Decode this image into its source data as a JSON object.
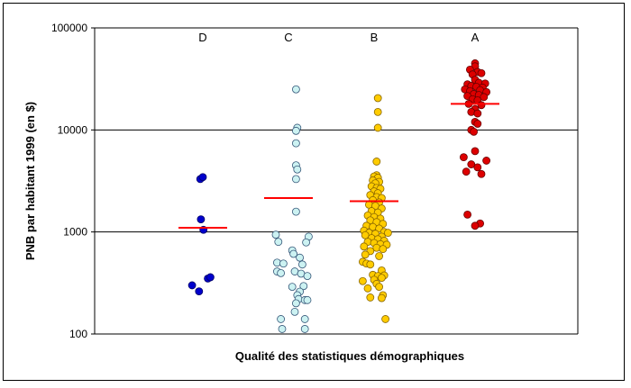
{
  "chart_data": {
    "type": "scatter",
    "title": "",
    "xlabel": "Qualité des statistiques démographiques",
    "ylabel": "PNB par habitant 1999 (en $)",
    "y_scale": "log",
    "ylim": [
      100,
      100000
    ],
    "y_ticks": [
      {
        "value": 100,
        "label": "100"
      },
      {
        "value": 1000,
        "label": "1000"
      },
      {
        "value": 10000,
        "label": "10000"
      },
      {
        "value": 100000,
        "label": "100000"
      }
    ],
    "grid": true,
    "legend": "none",
    "mean_color": "#ff0000",
    "series": [
      {
        "name": "D",
        "color": "#0000cc",
        "stroke": "#000066",
        "mean": 1100,
        "points": [
          {
            "x": -0.2,
            "y": 3300
          },
          {
            "x": 0.0,
            "y": 3450
          },
          {
            "x": -0.15,
            "y": 1330
          },
          {
            "x": 0.05,
            "y": 1050
          },
          {
            "x": -0.85,
            "y": 300
          },
          {
            "x": -0.3,
            "y": 262
          },
          {
            "x": 0.4,
            "y": 350
          },
          {
            "x": 0.6,
            "y": 360
          }
        ]
      },
      {
        "name": "C",
        "color": "#ccf2f2",
        "stroke": "#335577",
        "mean": 2150,
        "points": [
          {
            "x": 0.6,
            "y": 25000
          },
          {
            "x": 0.7,
            "y": 10500
          },
          {
            "x": 0.6,
            "y": 9800
          },
          {
            "x": 0.6,
            "y": 7400
          },
          {
            "x": 0.6,
            "y": 4500
          },
          {
            "x": 0.7,
            "y": 4100
          },
          {
            "x": 0.6,
            "y": 3300
          },
          {
            "x": 0.6,
            "y": 1580
          },
          {
            "x": -1.0,
            "y": 940
          },
          {
            "x": 1.6,
            "y": 900
          },
          {
            "x": -0.8,
            "y": 800
          },
          {
            "x": 1.4,
            "y": 790
          },
          {
            "x": 0.3,
            "y": 660
          },
          {
            "x": 0.4,
            "y": 610
          },
          {
            "x": 0.9,
            "y": 560
          },
          {
            "x": -0.9,
            "y": 500
          },
          {
            "x": -0.4,
            "y": 490
          },
          {
            "x": 1.1,
            "y": 480
          },
          {
            "x": -0.9,
            "y": 410
          },
          {
            "x": 0.5,
            "y": 410
          },
          {
            "x": 1.0,
            "y": 390
          },
          {
            "x": -0.6,
            "y": 395
          },
          {
            "x": 1.5,
            "y": 370
          },
          {
            "x": 0.3,
            "y": 290
          },
          {
            "x": 1.2,
            "y": 295
          },
          {
            "x": 0.9,
            "y": 260
          },
          {
            "x": 0.7,
            "y": 240
          },
          {
            "x": 0.8,
            "y": 220
          },
          {
            "x": 1.3,
            "y": 215
          },
          {
            "x": 1.5,
            "y": 215
          },
          {
            "x": 0.6,
            "y": 200
          },
          {
            "x": 0.5,
            "y": 165
          },
          {
            "x": -0.6,
            "y": 140
          },
          {
            "x": 1.3,
            "y": 140
          },
          {
            "x": -0.5,
            "y": 112
          },
          {
            "x": 1.3,
            "y": 112
          }
        ]
      },
      {
        "name": "B",
        "color": "#ffcc00",
        "stroke": "#886600",
        "mean": 2000,
        "points": [
          {
            "x": 0.3,
            "y": 20500
          },
          {
            "x": 0.3,
            "y": 15000
          },
          {
            "x": 0.3,
            "y": 10500
          },
          {
            "x": 0.2,
            "y": 4900
          },
          {
            "x": 0.2,
            "y": 3600
          },
          {
            "x": 0.0,
            "y": 3500
          },
          {
            "x": 0.3,
            "y": 3400
          },
          {
            "x": -0.1,
            "y": 3200
          },
          {
            "x": 0.4,
            "y": 3100
          },
          {
            "x": 0.1,
            "y": 3000
          },
          {
            "x": -0.2,
            "y": 2800
          },
          {
            "x": 0.2,
            "y": 2700
          },
          {
            "x": 0.5,
            "y": 2650
          },
          {
            "x": 0.0,
            "y": 2500
          },
          {
            "x": 0.3,
            "y": 2400
          },
          {
            "x": -0.3,
            "y": 2300
          },
          {
            "x": 0.2,
            "y": 2200
          },
          {
            "x": 0.6,
            "y": 2150
          },
          {
            "x": -0.1,
            "y": 2050
          },
          {
            "x": 0.4,
            "y": 1950
          },
          {
            "x": -0.4,
            "y": 1850
          },
          {
            "x": 0.1,
            "y": 1800
          },
          {
            "x": 0.6,
            "y": 1700
          },
          {
            "x": -0.2,
            "y": 1600
          },
          {
            "x": 0.3,
            "y": 1550
          },
          {
            "x": -0.5,
            "y": 1450
          },
          {
            "x": 0.0,
            "y": 1400
          },
          {
            "x": 0.5,
            "y": 1350
          },
          {
            "x": -0.3,
            "y": 1300
          },
          {
            "x": 0.2,
            "y": 1250
          },
          {
            "x": 0.7,
            "y": 1200
          },
          {
            "x": -0.6,
            "y": 1150
          },
          {
            "x": -0.1,
            "y": 1120
          },
          {
            "x": 0.4,
            "y": 1080
          },
          {
            "x": -0.8,
            "y": 1030
          },
          {
            "x": 0.8,
            "y": 1000
          },
          {
            "x": -0.4,
            "y": 980
          },
          {
            "x": 0.1,
            "y": 960
          },
          {
            "x": 1.1,
            "y": 980
          },
          {
            "x": -0.7,
            "y": 930
          },
          {
            "x": 0.6,
            "y": 900
          },
          {
            "x": -0.2,
            "y": 870
          },
          {
            "x": 0.3,
            "y": 850
          },
          {
            "x": 0.8,
            "y": 820
          },
          {
            "x": -0.5,
            "y": 800
          },
          {
            "x": 0.0,
            "y": 780
          },
          {
            "x": 0.5,
            "y": 760
          },
          {
            "x": 1.0,
            "y": 750
          },
          {
            "x": -0.8,
            "y": 720
          },
          {
            "x": 0.2,
            "y": 700
          },
          {
            "x": 0.7,
            "y": 680
          },
          {
            "x": -0.3,
            "y": 650
          },
          {
            "x": -0.7,
            "y": 600
          },
          {
            "x": 0.4,
            "y": 580
          },
          {
            "x": -0.9,
            "y": 510
          },
          {
            "x": -0.6,
            "y": 490
          },
          {
            "x": -0.3,
            "y": 480
          },
          {
            "x": 0.6,
            "y": 420
          },
          {
            "x": -0.1,
            "y": 380
          },
          {
            "x": 0.3,
            "y": 370
          },
          {
            "x": 0.8,
            "y": 375
          },
          {
            "x": 0.6,
            "y": 355
          },
          {
            "x": 0.0,
            "y": 340
          },
          {
            "x": -0.9,
            "y": 330
          },
          {
            "x": 0.2,
            "y": 310
          },
          {
            "x": -0.5,
            "y": 280
          },
          {
            "x": 0.4,
            "y": 290
          },
          {
            "x": 0.7,
            "y": 240
          },
          {
            "x": -0.3,
            "y": 228
          },
          {
            "x": 0.6,
            "y": 225
          },
          {
            "x": 0.9,
            "y": 140
          }
        ]
      },
      {
        "name": "A",
        "color": "#dd0000",
        "stroke": "#660000",
        "mean": 18000,
        "points": [
          {
            "x": 0.0,
            "y": 45000
          },
          {
            "x": 0.0,
            "y": 42000
          },
          {
            "x": -0.4,
            "y": 39000
          },
          {
            "x": 0.2,
            "y": 37000
          },
          {
            "x": 0.5,
            "y": 36000
          },
          {
            "x": -0.2,
            "y": 35000
          },
          {
            "x": 0.0,
            "y": 31000
          },
          {
            "x": -0.6,
            "y": 28000
          },
          {
            "x": 0.3,
            "y": 29000
          },
          {
            "x": 0.8,
            "y": 28500
          },
          {
            "x": -0.3,
            "y": 27000
          },
          {
            "x": 0.1,
            "y": 26500
          },
          {
            "x": 0.6,
            "y": 26000
          },
          {
            "x": -0.8,
            "y": 25000
          },
          {
            "x": -0.4,
            "y": 24000
          },
          {
            "x": 0.4,
            "y": 24500
          },
          {
            "x": 0.9,
            "y": 23500
          },
          {
            "x": -0.1,
            "y": 22500
          },
          {
            "x": 0.3,
            "y": 22000
          },
          {
            "x": -0.6,
            "y": 21500
          },
          {
            "x": 0.7,
            "y": 21000
          },
          {
            "x": -0.2,
            "y": 20000
          },
          {
            "x": 0.2,
            "y": 19500
          },
          {
            "x": -0.5,
            "y": 18000
          },
          {
            "x": 0.5,
            "y": 17500
          },
          {
            "x": 0.0,
            "y": 16000
          },
          {
            "x": -0.3,
            "y": 15000
          },
          {
            "x": 0.2,
            "y": 14500
          },
          {
            "x": 0.0,
            "y": 12000
          },
          {
            "x": 0.2,
            "y": 11500
          },
          {
            "x": -0.3,
            "y": 10000
          },
          {
            "x": -0.1,
            "y": 9600
          },
          {
            "x": 0.0,
            "y": 6200
          },
          {
            "x": -0.9,
            "y": 5400
          },
          {
            "x": 0.9,
            "y": 5000
          },
          {
            "x": -0.3,
            "y": 4600
          },
          {
            "x": 0.2,
            "y": 4300
          },
          {
            "x": -0.7,
            "y": 3900
          },
          {
            "x": 0.5,
            "y": 3700
          },
          {
            "x": -0.6,
            "y": 1480
          },
          {
            "x": 0.4,
            "y": 1210
          },
          {
            "x": 0.0,
            "y": 1150
          }
        ]
      }
    ]
  }
}
